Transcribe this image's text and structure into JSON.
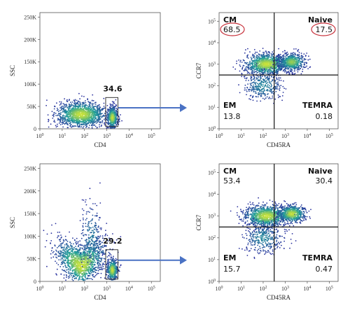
{
  "chart_data": [
    {
      "type": "scatter",
      "subtype": "flow-cytometry-density",
      "xlabel": "CD4",
      "ylabel": "SSC",
      "x_ticks": [
        {
          "exp": 0,
          "label": "10",
          "sup": "0"
        },
        {
          "exp": 1,
          "label": "10",
          "sup": "1"
        },
        {
          "exp": 2,
          "label": "10",
          "sup": "2"
        },
        {
          "exp": 3,
          "label": "10",
          "sup": "3"
        },
        {
          "exp": 4,
          "label": "10",
          "sup": "4"
        },
        {
          "exp": 5,
          "label": "10",
          "sup": "5"
        }
      ],
      "y_ticks": [
        {
          "value": 0,
          "label": "0"
        },
        {
          "value": 50,
          "label": "50K"
        },
        {
          "value": 100,
          "label": "100K"
        },
        {
          "value": 150,
          "label": "150K"
        },
        {
          "value": 200,
          "label": "200K"
        },
        {
          "value": 250,
          "label": "250K"
        }
      ],
      "x_scale": "log",
      "xlim_exp": [
        0,
        5.4
      ],
      "y_unit": "K",
      "ylim": [
        0,
        260
      ],
      "gate": {
        "name": "CD4+",
        "x_exp": [
          2.95,
          3.5
        ],
        "y": [
          5,
          70
        ],
        "percent": "34.6"
      }
    },
    {
      "type": "scatter",
      "subtype": "flow-cytometry-quadrant",
      "xlabel": "CD45RA",
      "ylabel": "CCR7",
      "x_ticks": [
        {
          "exp": 0,
          "label": "10",
          "sup": "0"
        },
        {
          "exp": 1,
          "label": "10",
          "sup": "1"
        },
        {
          "exp": 2,
          "label": "10",
          "sup": "2"
        },
        {
          "exp": 3,
          "label": "10",
          "sup": "3"
        },
        {
          "exp": 4,
          "label": "10",
          "sup": "4"
        },
        {
          "exp": 5,
          "label": "10",
          "sup": "5"
        }
      ],
      "y_ticks": [
        {
          "exp": 0,
          "label": "10",
          "sup": "0"
        },
        {
          "exp": 1,
          "label": "10",
          "sup": "1"
        },
        {
          "exp": 2,
          "label": "10",
          "sup": "2"
        },
        {
          "exp": 3,
          "label": "10",
          "sup": "3"
        },
        {
          "exp": 4,
          "label": "10",
          "sup": "4"
        },
        {
          "exp": 5,
          "label": "10",
          "sup": "5"
        }
      ],
      "x_scale": "log",
      "y_scale": "log",
      "xlim_exp": [
        0,
        5.4
      ],
      "ylim_exp": [
        0,
        5.4
      ],
      "quadrant_split": {
        "x_exp": 2.5,
        "y_exp": 2.5
      },
      "quadrants": [
        {
          "name": "CM",
          "value": "68.5",
          "corner": "top-left",
          "circled": true
        },
        {
          "name": "Naive",
          "value": "17.5",
          "corner": "top-right",
          "circled": true
        },
        {
          "name": "EM",
          "value": "13.8",
          "corner": "bottom-left",
          "circled": false
        },
        {
          "name": "TEMRA",
          "value": "0.18",
          "corner": "bottom-right",
          "circled": false
        }
      ]
    },
    {
      "type": "scatter",
      "subtype": "flow-cytometry-density",
      "xlabel": "CD4",
      "ylabel": "SSC",
      "x_ticks": [
        {
          "exp": 0,
          "label": "10",
          "sup": "0"
        },
        {
          "exp": 1,
          "label": "10",
          "sup": "1"
        },
        {
          "exp": 2,
          "label": "10",
          "sup": "2"
        },
        {
          "exp": 3,
          "label": "10",
          "sup": "3"
        },
        {
          "exp": 4,
          "label": "10",
          "sup": "4"
        },
        {
          "exp": 5,
          "label": "10",
          "sup": "5"
        }
      ],
      "y_ticks": [
        {
          "value": 0,
          "label": "0"
        },
        {
          "value": 50,
          "label": "50K"
        },
        {
          "value": 100,
          "label": "100K"
        },
        {
          "value": 150,
          "label": "150K"
        },
        {
          "value": 200,
          "label": "200K"
        },
        {
          "value": 250,
          "label": "250K"
        }
      ],
      "x_scale": "log",
      "xlim_exp": [
        0,
        5.4
      ],
      "y_unit": "K",
      "ylim": [
        0,
        260
      ],
      "gate": {
        "name": "CD4+",
        "x_exp": [
          2.95,
          3.5
        ],
        "y": [
          5,
          70
        ],
        "percent": "29.2"
      }
    },
    {
      "type": "scatter",
      "subtype": "flow-cytometry-quadrant",
      "xlabel": "CD45RA",
      "ylabel": "CCR7",
      "x_ticks": [
        {
          "exp": 0,
          "label": "10",
          "sup": "0"
        },
        {
          "exp": 1,
          "label": "10",
          "sup": "1"
        },
        {
          "exp": 2,
          "label": "10",
          "sup": "2"
        },
        {
          "exp": 3,
          "label": "10",
          "sup": "3"
        },
        {
          "exp": 4,
          "label": "10",
          "sup": "4"
        },
        {
          "exp": 5,
          "label": "10",
          "sup": "5"
        }
      ],
      "y_ticks": [
        {
          "exp": 0,
          "label": "10",
          "sup": "0"
        },
        {
          "exp": 1,
          "label": "10",
          "sup": "1"
        },
        {
          "exp": 2,
          "label": "10",
          "sup": "2"
        },
        {
          "exp": 3,
          "label": "10",
          "sup": "3"
        },
        {
          "exp": 4,
          "label": "10",
          "sup": "4"
        },
        {
          "exp": 5,
          "label": "10",
          "sup": "5"
        }
      ],
      "x_scale": "log",
      "y_scale": "log",
      "xlim_exp": [
        0,
        5.4
      ],
      "ylim_exp": [
        0,
        5.4
      ],
      "quadrant_split": {
        "x_exp": 2.5,
        "y_exp": 2.5
      },
      "quadrants": [
        {
          "name": "CM",
          "value": "53.4",
          "corner": "top-left",
          "circled": false
        },
        {
          "name": "Naive",
          "value": "30.4",
          "corner": "top-right",
          "circled": false
        },
        {
          "name": "EM",
          "value": "15.7",
          "corner": "bottom-left",
          "circled": false
        },
        {
          "name": "TEMRA",
          "value": "0.47",
          "corner": "bottom-right",
          "circled": false
        }
      ]
    }
  ],
  "colors": {
    "arrow": "#4a72c4",
    "circle": "#c8323c",
    "density_low": "#2a2f9e",
    "density_mid": "#1f9e9a",
    "density_high": "#c9e23a"
  }
}
